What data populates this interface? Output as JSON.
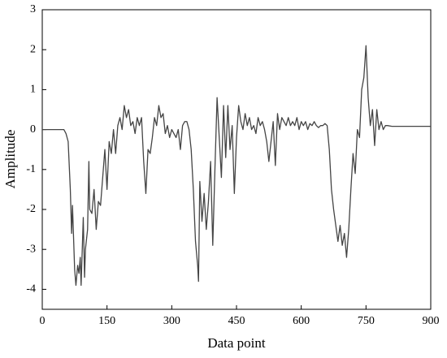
{
  "chart_data": {
    "type": "line",
    "xlabel": "Data point",
    "ylabel": "Amplitude",
    "xlim": [
      0,
      900
    ],
    "xticks": [
      0,
      150,
      300,
      450,
      600,
      750,
      900
    ],
    "ylim": [
      -4.5,
      3
    ],
    "yticks": [
      -4,
      -3,
      -2,
      -1,
      0,
      1,
      2,
      3
    ],
    "series": [
      {
        "color": "#444444",
        "x": [
          0,
          50,
          55,
          60,
          65,
          68,
          70,
          75,
          78,
          82,
          85,
          88,
          90,
          95,
          98,
          100,
          105,
          108,
          110,
          115,
          120,
          125,
          130,
          135,
          140,
          145,
          150,
          155,
          160,
          165,
          170,
          175,
          180,
          185,
          190,
          195,
          200,
          205,
          210,
          215,
          220,
          225,
          230,
          235,
          240,
          245,
          250,
          255,
          260,
          265,
          270,
          275,
          280,
          285,
          290,
          295,
          300,
          305,
          310,
          315,
          320,
          325,
          330,
          335,
          340,
          345,
          350,
          355,
          360,
          362,
          365,
          370,
          375,
          380,
          385,
          390,
          395,
          400,
          405,
          410,
          415,
          420,
          425,
          430,
          435,
          440,
          445,
          450,
          455,
          460,
          465,
          470,
          475,
          480,
          485,
          490,
          495,
          500,
          505,
          510,
          515,
          520,
          525,
          530,
          535,
          540,
          545,
          550,
          555,
          560,
          565,
          570,
          575,
          580,
          585,
          590,
          595,
          600,
          605,
          610,
          615,
          620,
          625,
          630,
          635,
          640,
          645,
          650,
          655,
          660,
          665,
          670,
          675,
          680,
          685,
          690,
          695,
          700,
          705,
          710,
          715,
          720,
          725,
          730,
          735,
          740,
          745,
          750,
          755,
          760,
          765,
          770,
          775,
          780,
          785,
          790,
          795,
          800,
          810,
          820,
          830,
          900
        ],
        "values": [
          0,
          0,
          -0.1,
          -0.3,
          -1.5,
          -2.6,
          -1.9,
          -3.5,
          -3.9,
          -3.4,
          -3.6,
          -3.2,
          -3.9,
          -2.2,
          -3.7,
          -3.0,
          -2.5,
          -0.8,
          -2.0,
          -2.1,
          -1.5,
          -2.5,
          -1.8,
          -1.9,
          -1.2,
          -0.5,
          -1.5,
          -0.3,
          -0.6,
          0,
          -0.6,
          0.1,
          0.3,
          0,
          0.6,
          0.3,
          0.5,
          0.1,
          0.2,
          -0.1,
          0.3,
          0.1,
          0.3,
          -0.8,
          -1.6,
          -0.5,
          -0.6,
          -0.2,
          0.3,
          0.1,
          0.6,
          0.3,
          0.4,
          -0.1,
          0.1,
          -0.2,
          0,
          -0.1,
          -0.2,
          0,
          -0.5,
          0.1,
          0.2,
          0.2,
          0,
          -0.5,
          -1.5,
          -2.8,
          -3.4,
          -3.8,
          -1.3,
          -2.3,
          -1.6,
          -2.5,
          -1.8,
          -0.8,
          -2.9,
          -1.0,
          0.8,
          -0.2,
          -1.2,
          0.6,
          -0.7,
          0.6,
          -0.5,
          0.1,
          -1.6,
          -0.2,
          0.6,
          0.2,
          0,
          0.4,
          0.1,
          0.3,
          0,
          0.1,
          -0.1,
          0.3,
          0.1,
          0.2,
          0,
          -0.3,
          -0.8,
          -0.3,
          0.2,
          -0.9,
          0.4,
          0,
          0.3,
          0.2,
          0.1,
          0.3,
          0.1,
          0.2,
          0.1,
          0.3,
          0,
          0.2,
          0.1,
          0.2,
          0,
          0.15,
          0.1,
          0.2,
          0.1,
          0.05,
          0.1,
          0.1,
          0.15,
          0.1,
          -0.5,
          -1.5,
          -2.0,
          -2.4,
          -2.8,
          -2.4,
          -2.9,
          -2.6,
          -3.2,
          -2.5,
          -1.5,
          -0.6,
          -1.1,
          0,
          -0.2,
          1.0,
          1.3,
          2.1,
          0.8,
          0.1,
          0.5,
          -0.4,
          0.5,
          0,
          0.2,
          0,
          0.1,
          0.1,
          0.08,
          0.08,
          0.08,
          0.08
        ]
      }
    ]
  }
}
